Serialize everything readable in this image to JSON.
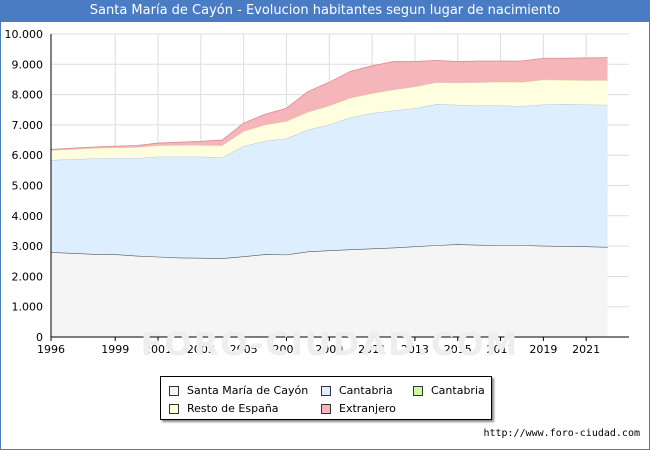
{
  "title": "Santa María de Cayón - Evolucion habitantes segun lugar de nacimiento",
  "source": "http://www.foro-ciudad.com",
  "watermark": "FORO-CIUDAD.COM",
  "colors": {
    "title_bar": "#4a7cc4",
    "santa_maria": "#f5f5f5",
    "cantabria": "#ddeeff",
    "cantabria_other": "#ccff99",
    "resto_espana": "#ffffe0",
    "extranjero": "#f4b6bb"
  },
  "legend": [
    {
      "label": "Santa María de Cayón",
      "color": "#f5f5f5"
    },
    {
      "label": "Cantabria",
      "color": "#ddeeff"
    },
    {
      "label": "Cantabria",
      "color": "#ccff99"
    },
    {
      "label": "Resto de España",
      "color": "#ffffe0"
    },
    {
      "label": "Extranjero",
      "color": "#f4b6bb"
    }
  ],
  "chart_data": {
    "type": "area",
    "title": "Santa María de Cayón - Evolucion habitantes segun lugar de nacimiento",
    "x": [
      1996,
      1998,
      1999,
      2000,
      2001,
      2002,
      2003,
      2004,
      2005,
      2006,
      2007,
      2008,
      2009,
      2010,
      2011,
      2012,
      2013,
      2014,
      2015,
      2016,
      2017,
      2018,
      2019,
      2020,
      2021,
      2022
    ],
    "x_ticks": [
      "1996",
      "1999",
      "2001",
      "2003",
      "2005",
      "2007",
      "2009",
      "2011",
      "2013",
      "2015",
      "2017",
      "2019",
      "2021"
    ],
    "y_ticks": [
      "0",
      "1.000",
      "2.000",
      "3.000",
      "4.000",
      "5.000",
      "6.000",
      "7.000",
      "8.000",
      "9.000",
      "10.000"
    ],
    "ylim": [
      0,
      10000
    ],
    "xlim": [
      1996,
      2023
    ],
    "grid": true,
    "stacked": true,
    "series": [
      {
        "name": "Santa María de Cayón",
        "values": [
          2800,
          2740,
          2730,
          2680,
          2650,
          2620,
          2610,
          2600,
          2660,
          2730,
          2720,
          2820,
          2860,
          2890,
          2920,
          2950,
          2990,
          3030,
          3060,
          3040,
          3030,
          3030,
          3010,
          3000,
          2990,
          2970
        ]
      },
      {
        "name": "Cantabria",
        "values": [
          3040,
          3150,
          3170,
          3220,
          3300,
          3330,
          3340,
          3330,
          3640,
          3740,
          3830,
          4020,
          4150,
          4360,
          4470,
          4520,
          4560,
          4650,
          4600,
          4600,
          4610,
          4590,
          4660,
          4680,
          4680,
          4690
        ]
      },
      {
        "name": "Cantabria",
        "values": [
          0,
          0,
          0,
          0,
          0,
          0,
          0,
          0,
          0,
          0,
          0,
          0,
          0,
          0,
          0,
          0,
          0,
          0,
          0,
          0,
          0,
          0,
          0,
          0,
          0,
          0
        ]
      },
      {
        "name": "Resto de España",
        "values": [
          320,
          340,
          350,
          360,
          370,
          380,
          380,
          390,
          490,
          530,
          570,
          580,
          620,
          640,
          650,
          690,
          710,
          720,
          730,
          760,
          780,
          790,
          820,
          800,
          800,
          810
        ]
      },
      {
        "name": "Extranjero",
        "values": [
          30,
          40,
          50,
          60,
          80,
          100,
          130,
          180,
          270,
          350,
          430,
          680,
          780,
          880,
          910,
          930,
          830,
          730,
          700,
          710,
          690,
          700,
          710,
          720,
          740,
          750
        ]
      }
    ]
  }
}
